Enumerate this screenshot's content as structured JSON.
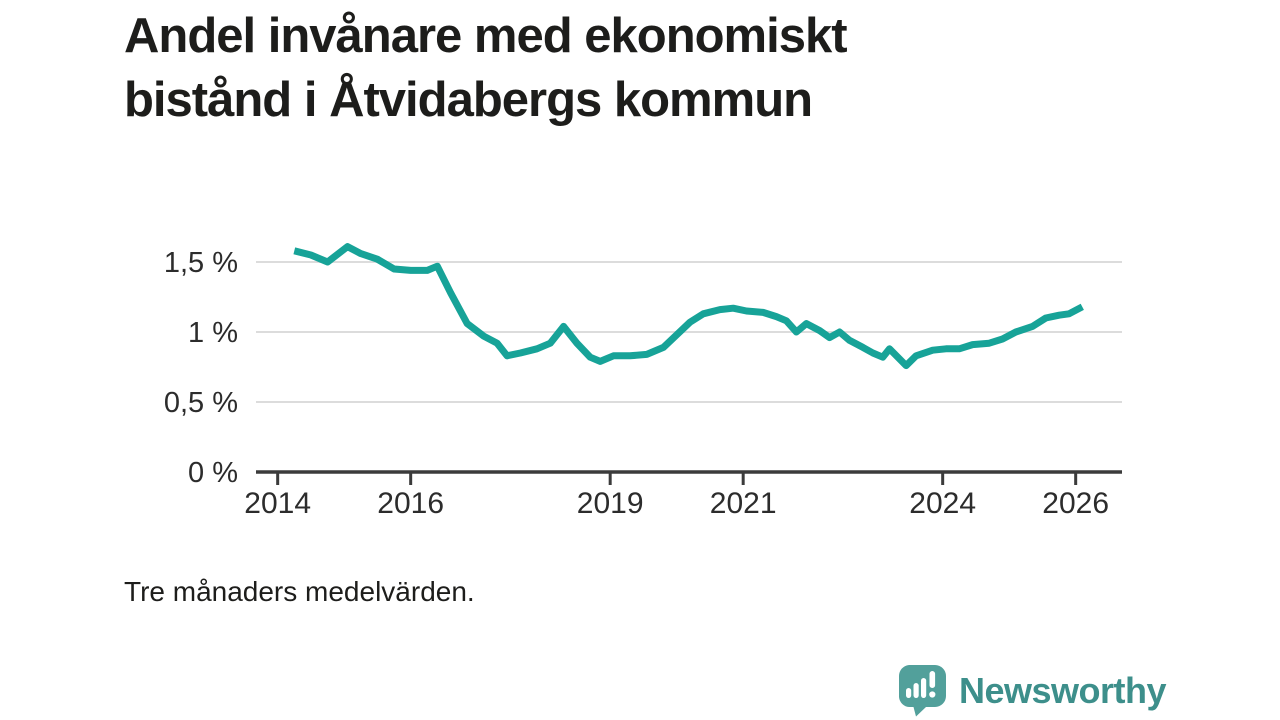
{
  "page": {
    "title": "Andel invånare med ekonomiskt\nbistånd i Åtvidabergs kommun",
    "note": "Tre månaders medelvärden.",
    "background_color": "#ffffff"
  },
  "branding": {
    "logo_text": "Newsworthy",
    "logo_icon": "bar-chart-speech-bubble-icon",
    "logo_text_color": "#3d8f8b",
    "logo_icon_color": "#52a09b"
  },
  "chart_data": {
    "type": "line",
    "title": "Andel invånare med ekonomiskt bistånd i Åtvidabergs kommun",
    "note": "Tre månaders medelvärden.",
    "unit": "%",
    "grid": true,
    "legend": "none",
    "line_color": "#17a398",
    "grid_color": "#dcdcdc",
    "axis_color": "#3b3b3b",
    "tick_label_color": "#2c2c2c",
    "xlim": [
      2013.67,
      2026.7
    ],
    "ylim": [
      0,
      1.7
    ],
    "x_ticks": [
      {
        "year": 2014,
        "label": "2014"
      },
      {
        "year": 2016,
        "label": "2016"
      },
      {
        "year": 2019,
        "label": "2019"
      },
      {
        "year": 2021,
        "label": "2021"
      },
      {
        "year": 2024,
        "label": "2024"
      },
      {
        "year": 2026,
        "label": "2026"
      }
    ],
    "y_ticks": [
      {
        "value": 1.5,
        "label": "1,5 %"
      },
      {
        "value": 1.0,
        "label": "1 %"
      },
      {
        "value": 0.5,
        "label": "0,5 %"
      },
      {
        "value": 0.0,
        "label": "0 %"
      }
    ],
    "series": [
      {
        "name": "Andel invånare med ekonomiskt bistånd",
        "x": [
          2014.25,
          2014.5,
          2014.75,
          2015.05,
          2015.25,
          2015.5,
          2015.75,
          2016.0,
          2016.25,
          2016.4,
          2016.6,
          2016.85,
          2017.1,
          2017.3,
          2017.45,
          2017.65,
          2017.9,
          2018.1,
          2018.3,
          2018.5,
          2018.7,
          2018.85,
          2019.05,
          2019.3,
          2019.55,
          2019.8,
          2020.0,
          2020.2,
          2020.4,
          2020.65,
          2020.85,
          2021.05,
          2021.3,
          2021.5,
          2021.65,
          2021.8,
          2021.95,
          2022.15,
          2022.3,
          2022.45,
          2022.6,
          2022.8,
          2022.95,
          2023.1,
          2023.2,
          2023.45,
          2023.6,
          2023.85,
          2024.05,
          2024.25,
          2024.45,
          2024.7,
          2024.9,
          2025.1,
          2025.35,
          2025.55,
          2025.75,
          2025.9,
          2026.1
        ],
        "y": [
          1.58,
          1.55,
          1.5,
          1.61,
          1.56,
          1.52,
          1.45,
          1.44,
          1.44,
          1.47,
          1.28,
          1.06,
          0.97,
          0.92,
          0.83,
          0.85,
          0.88,
          0.92,
          1.04,
          0.92,
          0.82,
          0.79,
          0.83,
          0.83,
          0.84,
          0.89,
          0.98,
          1.07,
          1.13,
          1.16,
          1.17,
          1.15,
          1.14,
          1.11,
          1.08,
          1.0,
          1.06,
          1.01,
          0.96,
          1.0,
          0.94,
          0.89,
          0.85,
          0.82,
          0.88,
          0.76,
          0.83,
          0.87,
          0.88,
          0.88,
          0.91,
          0.92,
          0.95,
          1.0,
          1.04,
          1.1,
          1.12,
          1.13,
          1.18
        ]
      }
    ]
  }
}
